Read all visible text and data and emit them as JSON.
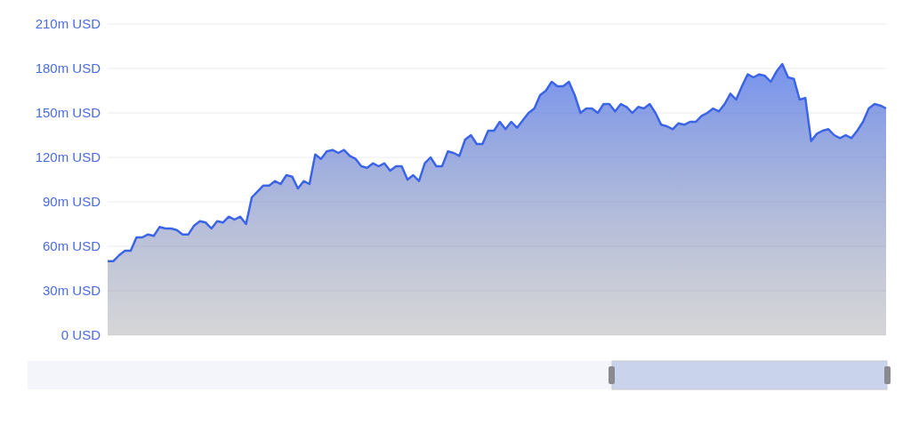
{
  "chart_data": {
    "type": "area",
    "categories": [
      null,
      null,
      null,
      null,
      null,
      null,
      null,
      null,
      null,
      null,
      null,
      null,
      null,
      null,
      null,
      null,
      null,
      null,
      null,
      null,
      null,
      null,
      null,
      null,
      null,
      null,
      null,
      null,
      null,
      null,
      null,
      null,
      null,
      null,
      null,
      null,
      null,
      null,
      null,
      null,
      null,
      null,
      null,
      null,
      null,
      null,
      null,
      null,
      null,
      null,
      null,
      null,
      null,
      null,
      null,
      null,
      null,
      null,
      null,
      null,
      null,
      null,
      null,
      null,
      null,
      null,
      null,
      null,
      null,
      null,
      null,
      null,
      null,
      null,
      null,
      null,
      null,
      null,
      null,
      null,
      null,
      null,
      null,
      null,
      null,
      null,
      null,
      null,
      null,
      null,
      null,
      null,
      null,
      null,
      null,
      null,
      null,
      null,
      null,
      null,
      null,
      null,
      null,
      null,
      null,
      null,
      null,
      null,
      null,
      null,
      null,
      null,
      null,
      null,
      null,
      null,
      null,
      null,
      null,
      null,
      null,
      null,
      null,
      null,
      null,
      null,
      null,
      null,
      null,
      null,
      null,
      null,
      null,
      null,
      null,
      null
    ],
    "series": [
      {
        "color": "#3b64e6",
        "values": [
          50,
          50,
          54,
          57,
          57,
          66,
          66,
          68,
          67,
          73,
          72,
          72,
          71,
          68,
          68,
          74,
          77,
          76,
          72,
          77,
          76,
          80,
          78,
          80,
          75,
          93,
          97,
          101,
          101,
          104,
          102,
          108,
          107,
          99,
          104,
          102,
          122,
          119,
          124,
          125,
          123,
          125,
          121,
          119,
          114,
          113,
          116,
          114,
          116,
          111,
          114,
          114,
          105,
          108,
          104,
          116,
          120,
          114,
          114,
          124,
          123,
          121,
          132,
          135,
          129,
          129,
          138,
          138,
          144,
          139,
          144,
          140,
          145,
          150,
          153,
          162,
          165,
          171,
          168,
          168,
          171,
          162,
          150,
          153,
          153,
          150,
          156,
          156,
          151,
          156,
          154,
          150,
          154,
          153,
          156,
          150,
          142,
          141,
          139,
          143,
          142,
          144,
          144,
          148,
          150,
          153,
          151,
          156,
          163,
          159,
          168,
          176,
          174,
          176,
          175,
          171,
          178,
          183,
          174,
          173,
          159,
          160,
          131,
          136,
          138,
          139,
          135,
          133,
          135,
          133,
          138,
          144,
          153,
          156,
          155,
          153
        ]
      }
    ],
    "ylim": [
      0,
      210
    ],
    "yticks": [
      {
        "value": 0,
        "label": "0 USD"
      },
      {
        "value": 30,
        "label": "30m USD"
      },
      {
        "value": 60,
        "label": "60m USD"
      },
      {
        "value": 90,
        "label": "90m USD"
      },
      {
        "value": 120,
        "label": "120m USD"
      },
      {
        "value": 150,
        "label": "150m USD"
      },
      {
        "value": 180,
        "label": "180m USD"
      },
      {
        "value": 210,
        "label": "210m USD"
      }
    ],
    "grid": "y",
    "legend": false,
    "tick_labels": "y",
    "marker": "none",
    "line_style": "solid"
  }
}
